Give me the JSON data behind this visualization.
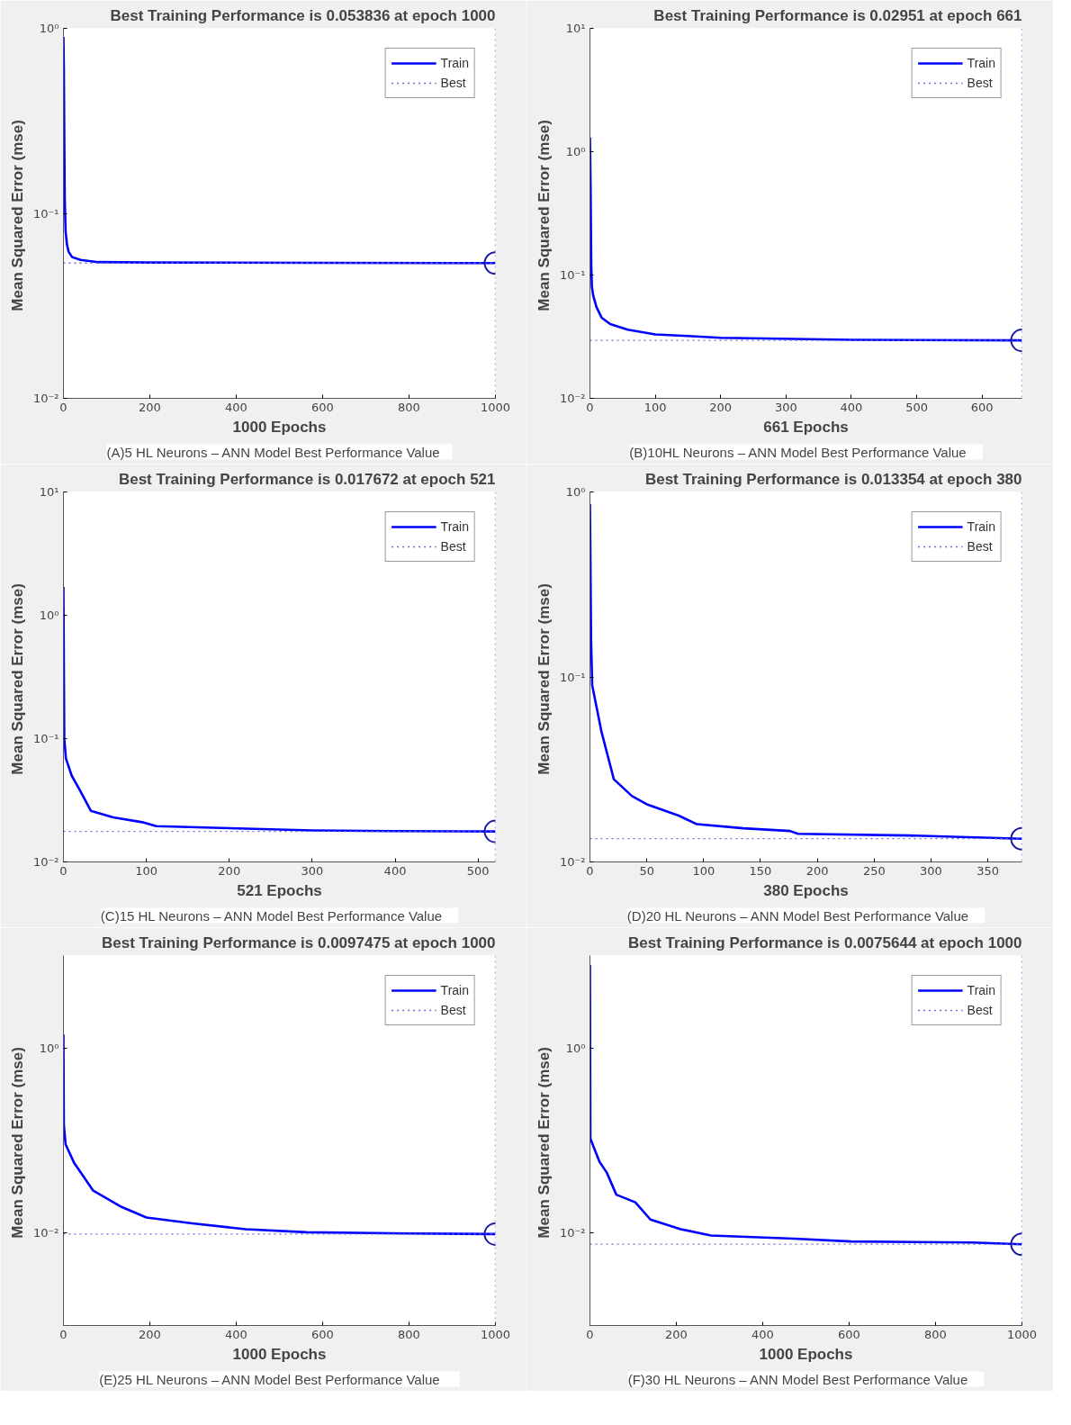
{
  "chart_data": [
    {
      "type": "line",
      "title": "Best Training Performance is 0.053836 at epoch 1000",
      "xlabel": "1000 Epochs",
      "ylabel": "Mean Squared Error  (mse)",
      "annotations": [
        "(A)5 HL Neurons  – ANN Model  Best Performance  Value"
      ],
      "log": "y",
      "grid": false,
      "legend": "top right",
      "xlim": [
        0,
        1000
      ],
      "xticks": [
        0,
        200,
        400,
        600,
        800,
        1000
      ],
      "ylim": [
        0.01,
        1
      ],
      "yticks": [
        {
          "value": 0.01,
          "label": "10⁻²"
        },
        {
          "value": 0.1,
          "label": "10⁻¹"
        },
        {
          "value": 1,
          "label": "10⁰"
        }
      ],
      "ref_lines": [
        {
          "axis": "x",
          "value": 1000,
          "color": "#6a6ad8",
          "line_style": "dotted"
        }
      ],
      "series": [
        {
          "name": "Train",
          "color": "#0000ff",
          "line_style": "solid",
          "x": [
            0,
            1,
            2,
            3,
            5,
            8,
            12,
            20,
            40,
            80,
            200,
            600,
            1000
          ],
          "values": [
            0.9,
            0.6,
            0.25,
            0.12,
            0.08,
            0.068,
            0.062,
            0.058,
            0.056,
            0.0545,
            0.0542,
            0.054,
            0.053836
          ]
        },
        {
          "name": "Best",
          "color": "#6a6ad8",
          "line_style": "dotted",
          "x": [
            0,
            1000
          ],
          "values": [
            0.053836,
            0.053836
          ]
        },
        {
          "type": "scatter",
          "marker": "circle",
          "color": "#1a1aa0",
          "x": [
            1000
          ],
          "values": [
            0.053836
          ]
        }
      ]
    },
    {
      "type": "line",
      "title": "Best Training Performance is 0.02951 at epoch 661",
      "xlabel": "661 Epochs",
      "ylabel": "Mean Squared Error  (mse)",
      "annotations": [
        "(B)10HL  Neurons  – ANN Model  Best Performance  Value"
      ],
      "log": "y",
      "grid": false,
      "legend": "top right",
      "xlim": [
        0,
        661
      ],
      "xticks": [
        0,
        100,
        200,
        300,
        400,
        500,
        600
      ],
      "ylim": [
        0.01,
        10
      ],
      "yticks": [
        {
          "value": 0.01,
          "label": "10⁻²"
        },
        {
          "value": 0.1,
          "label": "10⁻¹"
        },
        {
          "value": 1,
          "label": "10⁰"
        },
        {
          "value": 10,
          "label": "10¹"
        }
      ],
      "ref_lines": [
        {
          "axis": "x",
          "value": 661,
          "color": "#6a6ad8",
          "line_style": "dotted"
        }
      ],
      "series": [
        {
          "name": "Train",
          "color": "#0000ff",
          "line_style": "solid",
          "x": [
            0,
            1,
            2,
            3,
            5,
            10,
            18,
            31,
            58,
            100,
            150,
            200,
            400,
            661
          ],
          "values": [
            1.3,
            0.5,
            0.12,
            0.08,
            0.068,
            0.055,
            0.045,
            0.04,
            0.036,
            0.033,
            0.032,
            0.031,
            0.0298,
            0.02951
          ]
        },
        {
          "name": "Best",
          "color": "#6a6ad8",
          "line_style": "dotted",
          "x": [
            0,
            661
          ],
          "values": [
            0.02951,
            0.02951
          ]
        },
        {
          "type": "scatter",
          "marker": "circle",
          "color": "#1a1aa0",
          "x": [
            661
          ],
          "values": [
            0.02951
          ]
        }
      ]
    },
    {
      "type": "line",
      "title": "Best Training Performance is 0.017672 at epoch 521",
      "xlabel": "521 Epochs",
      "ylabel": "Mean Squared Error  (mse)",
      "annotations": [
        "(C)15 HL  Neurons  – ANN Model  Best Performance  Value"
      ],
      "log": "y",
      "grid": false,
      "legend": "top right",
      "xlim": [
        0,
        521
      ],
      "xticks": [
        0,
        100,
        200,
        300,
        400,
        500
      ],
      "ylim": [
        0.01,
        10
      ],
      "yticks": [
        {
          "value": 0.01,
          "label": "10⁻²"
        },
        {
          "value": 0.1,
          "label": "10⁻¹"
        },
        {
          "value": 1,
          "label": "10⁰"
        },
        {
          "value": 10,
          "label": "10¹"
        }
      ],
      "ref_lines": [
        {
          "axis": "x",
          "value": 521,
          "color": "#6a6ad8",
          "line_style": "dotted"
        }
      ],
      "series": [
        {
          "name": "Train",
          "color": "#0000ff",
          "line_style": "solid",
          "x": [
            0,
            1,
            3,
            10,
            20,
            33,
            60,
            95,
            112,
            200,
            300,
            400,
            521
          ],
          "values": [
            1.7,
            0.1,
            0.069,
            0.05,
            0.038,
            0.026,
            0.023,
            0.021,
            0.0195,
            0.0188,
            0.018,
            0.0178,
            0.017672
          ]
        },
        {
          "name": "Best",
          "color": "#6a6ad8",
          "line_style": "dotted",
          "x": [
            0,
            521
          ],
          "values": [
            0.017672,
            0.017672
          ]
        },
        {
          "type": "scatter",
          "marker": "circle",
          "color": "#1a1aa0",
          "x": [
            521
          ],
          "values": [
            0.017672
          ]
        }
      ]
    },
    {
      "type": "line",
      "title": "Best Training Performance is 0.013354 at epoch 380",
      "xlabel": "380 Epochs",
      "ylabel": "Mean Squared Error  (mse)",
      "annotations": [
        "(D)20 HL  Neurons  – ANN Model  Best Performance  Value"
      ],
      "log": "y",
      "grid": false,
      "legend": "top right",
      "xlim": [
        0,
        380
      ],
      "xticks": [
        0,
        50,
        100,
        150,
        200,
        250,
        300,
        350
      ],
      "ylim": [
        0.01,
        1
      ],
      "yticks": [
        {
          "value": 0.01,
          "label": "10⁻²"
        },
        {
          "value": 0.1,
          "label": "10⁻¹"
        },
        {
          "value": 1,
          "label": "10⁰"
        }
      ],
      "ref_lines": [
        {
          "axis": "x",
          "value": 380,
          "color": "#6a6ad8",
          "line_style": "dotted"
        }
      ],
      "series": [
        {
          "name": "Train",
          "color": "#0000ff",
          "line_style": "solid",
          "x": [
            0,
            1,
            2,
            10,
            21,
            37,
            50,
            78,
            94,
            135,
            176,
            183,
            280,
            380
          ],
          "values": [
            0.86,
            0.158,
            0.09,
            0.051,
            0.028,
            0.0227,
            0.0205,
            0.0178,
            0.016,
            0.0152,
            0.0147,
            0.0142,
            0.0139,
            0.013354
          ]
        },
        {
          "name": "Best",
          "color": "#6a6ad8",
          "line_style": "dotted",
          "x": [
            0,
            380
          ],
          "values": [
            0.013354,
            0.013354
          ]
        },
        {
          "type": "scatter",
          "marker": "circle",
          "color": "#1a1aa0",
          "x": [
            380
          ],
          "values": [
            0.013354
          ]
        }
      ]
    },
    {
      "type": "line",
      "title": "Best Training Performance is 0.0097475 at epoch 1000",
      "xlabel": "1000 Epochs",
      "ylabel": "Mean Squared Error  (mse)",
      "annotations": [
        "(E)25   HL Neurons  – ANN Model  Best Performance  Value"
      ],
      "log": "y",
      "grid": false,
      "legend": "top right",
      "xlim": [
        0,
        1000
      ],
      "xticks": [
        0,
        200,
        400,
        600,
        800,
        1000
      ],
      "ylim": [
        0.001,
        10
      ],
      "yticks": [
        {
          "value": 0.01,
          "label": "10⁻²"
        },
        {
          "value": 1,
          "label": "10⁰"
        }
      ],
      "ref_lines": [
        {
          "axis": "x",
          "value": 1000,
          "color": "#6a6ad8",
          "line_style": "dotted"
        }
      ],
      "series": [
        {
          "name": "Train",
          "color": "#0000ff",
          "line_style": "solid",
          "x": [
            0,
            1,
            5,
            25,
            69,
            131,
            192,
            298,
            422,
            563,
            800,
            1000
          ],
          "values": [
            1.4,
            0.147,
            0.091,
            0.057,
            0.0287,
            0.0195,
            0.0147,
            0.0127,
            0.011,
            0.0102,
            0.0099,
            0.0097475
          ]
        },
        {
          "name": "Best",
          "color": "#6a6ad8",
          "line_style": "dotted",
          "x": [
            0,
            1000
          ],
          "values": [
            0.0097475,
            0.0097475
          ]
        },
        {
          "type": "scatter",
          "marker": "circle",
          "color": "#1a1aa0",
          "x": [
            1000
          ],
          "values": [
            0.0097475
          ]
        }
      ]
    },
    {
      "type": "line",
      "title": "Best Training Performance is 0.0075644 at epoch 1000",
      "xlabel": "1000 Epochs",
      "ylabel": "Mean Squared Error  (mse)",
      "annotations": [
        "(F)30 HL  Neurons  – ANN Model  Best Performance  Value"
      ],
      "log": "y",
      "grid": false,
      "legend": "top right",
      "xlim": [
        0,
        1000
      ],
      "xticks": [
        0,
        200,
        400,
        600,
        800,
        1000
      ],
      "ylim": [
        0.001,
        10
      ],
      "yticks": [
        {
          "value": 0.01,
          "label": "10⁻²"
        },
        {
          "value": 1,
          "label": "10⁰"
        }
      ],
      "ref_lines": [
        {
          "axis": "x",
          "value": 1000,
          "color": "#6a6ad8",
          "line_style": "dotted"
        }
      ],
      "series": [
        {
          "name": "Train",
          "color": "#0000ff",
          "line_style": "solid",
          "x": [
            0,
            1,
            22,
            39,
            61,
            105,
            140,
            210,
            280,
            473,
            604,
            884,
            1000
          ],
          "values": [
            7.9,
            0.105,
            0.059,
            0.045,
            0.026,
            0.0215,
            0.014,
            0.011,
            0.0094,
            0.0087,
            0.0081,
            0.0079,
            0.0075644
          ]
        },
        {
          "name": "Best",
          "color": "#6a6ad8",
          "line_style": "dotted",
          "x": [
            0,
            1000
          ],
          "values": [
            0.0075644,
            0.0075644
          ]
        },
        {
          "type": "scatter",
          "marker": "circle",
          "color": "#1a1aa0",
          "x": [
            1000
          ],
          "values": [
            0.0075644
          ]
        }
      ]
    }
  ]
}
